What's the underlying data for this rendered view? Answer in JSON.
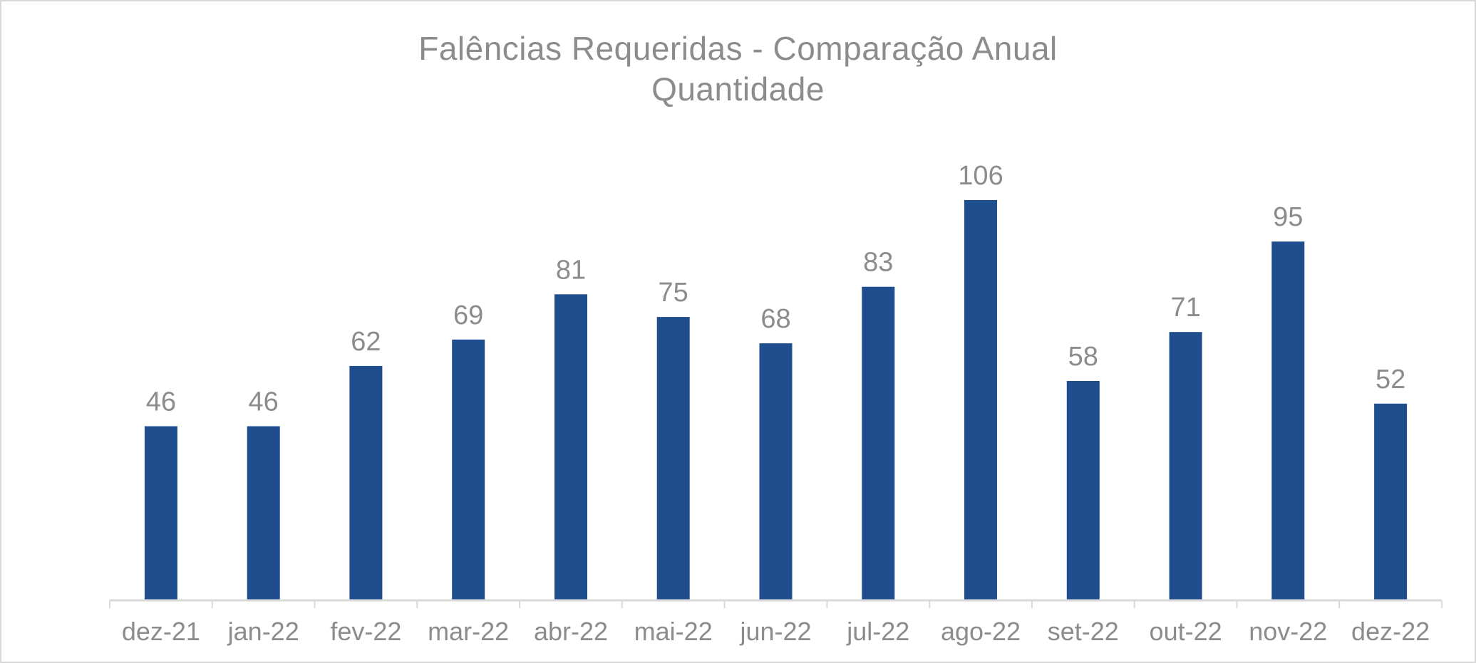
{
  "chart_data": {
    "type": "bar",
    "title": "Falências Requeridas - Comparação Anual",
    "subtitle": "Quantidade",
    "xlabel": "",
    "ylabel": "",
    "categories": [
      "dez-21",
      "jan-22",
      "fev-22",
      "mar-22",
      "abr-22",
      "mai-22",
      "jun-22",
      "jul-22",
      "ago-22",
      "set-22",
      "out-22",
      "nov-22",
      "dez-22"
    ],
    "values": [
      46,
      46,
      62,
      69,
      81,
      75,
      68,
      83,
      106,
      58,
      71,
      95,
      52
    ],
    "grid": false,
    "legend": "none",
    "ylim": [
      0,
      106
    ],
    "colors": {
      "bar": "#1f4e8f",
      "label": "#8c8c8c",
      "axis": "#d9d9d9",
      "title": "#8c8c8c"
    }
  }
}
